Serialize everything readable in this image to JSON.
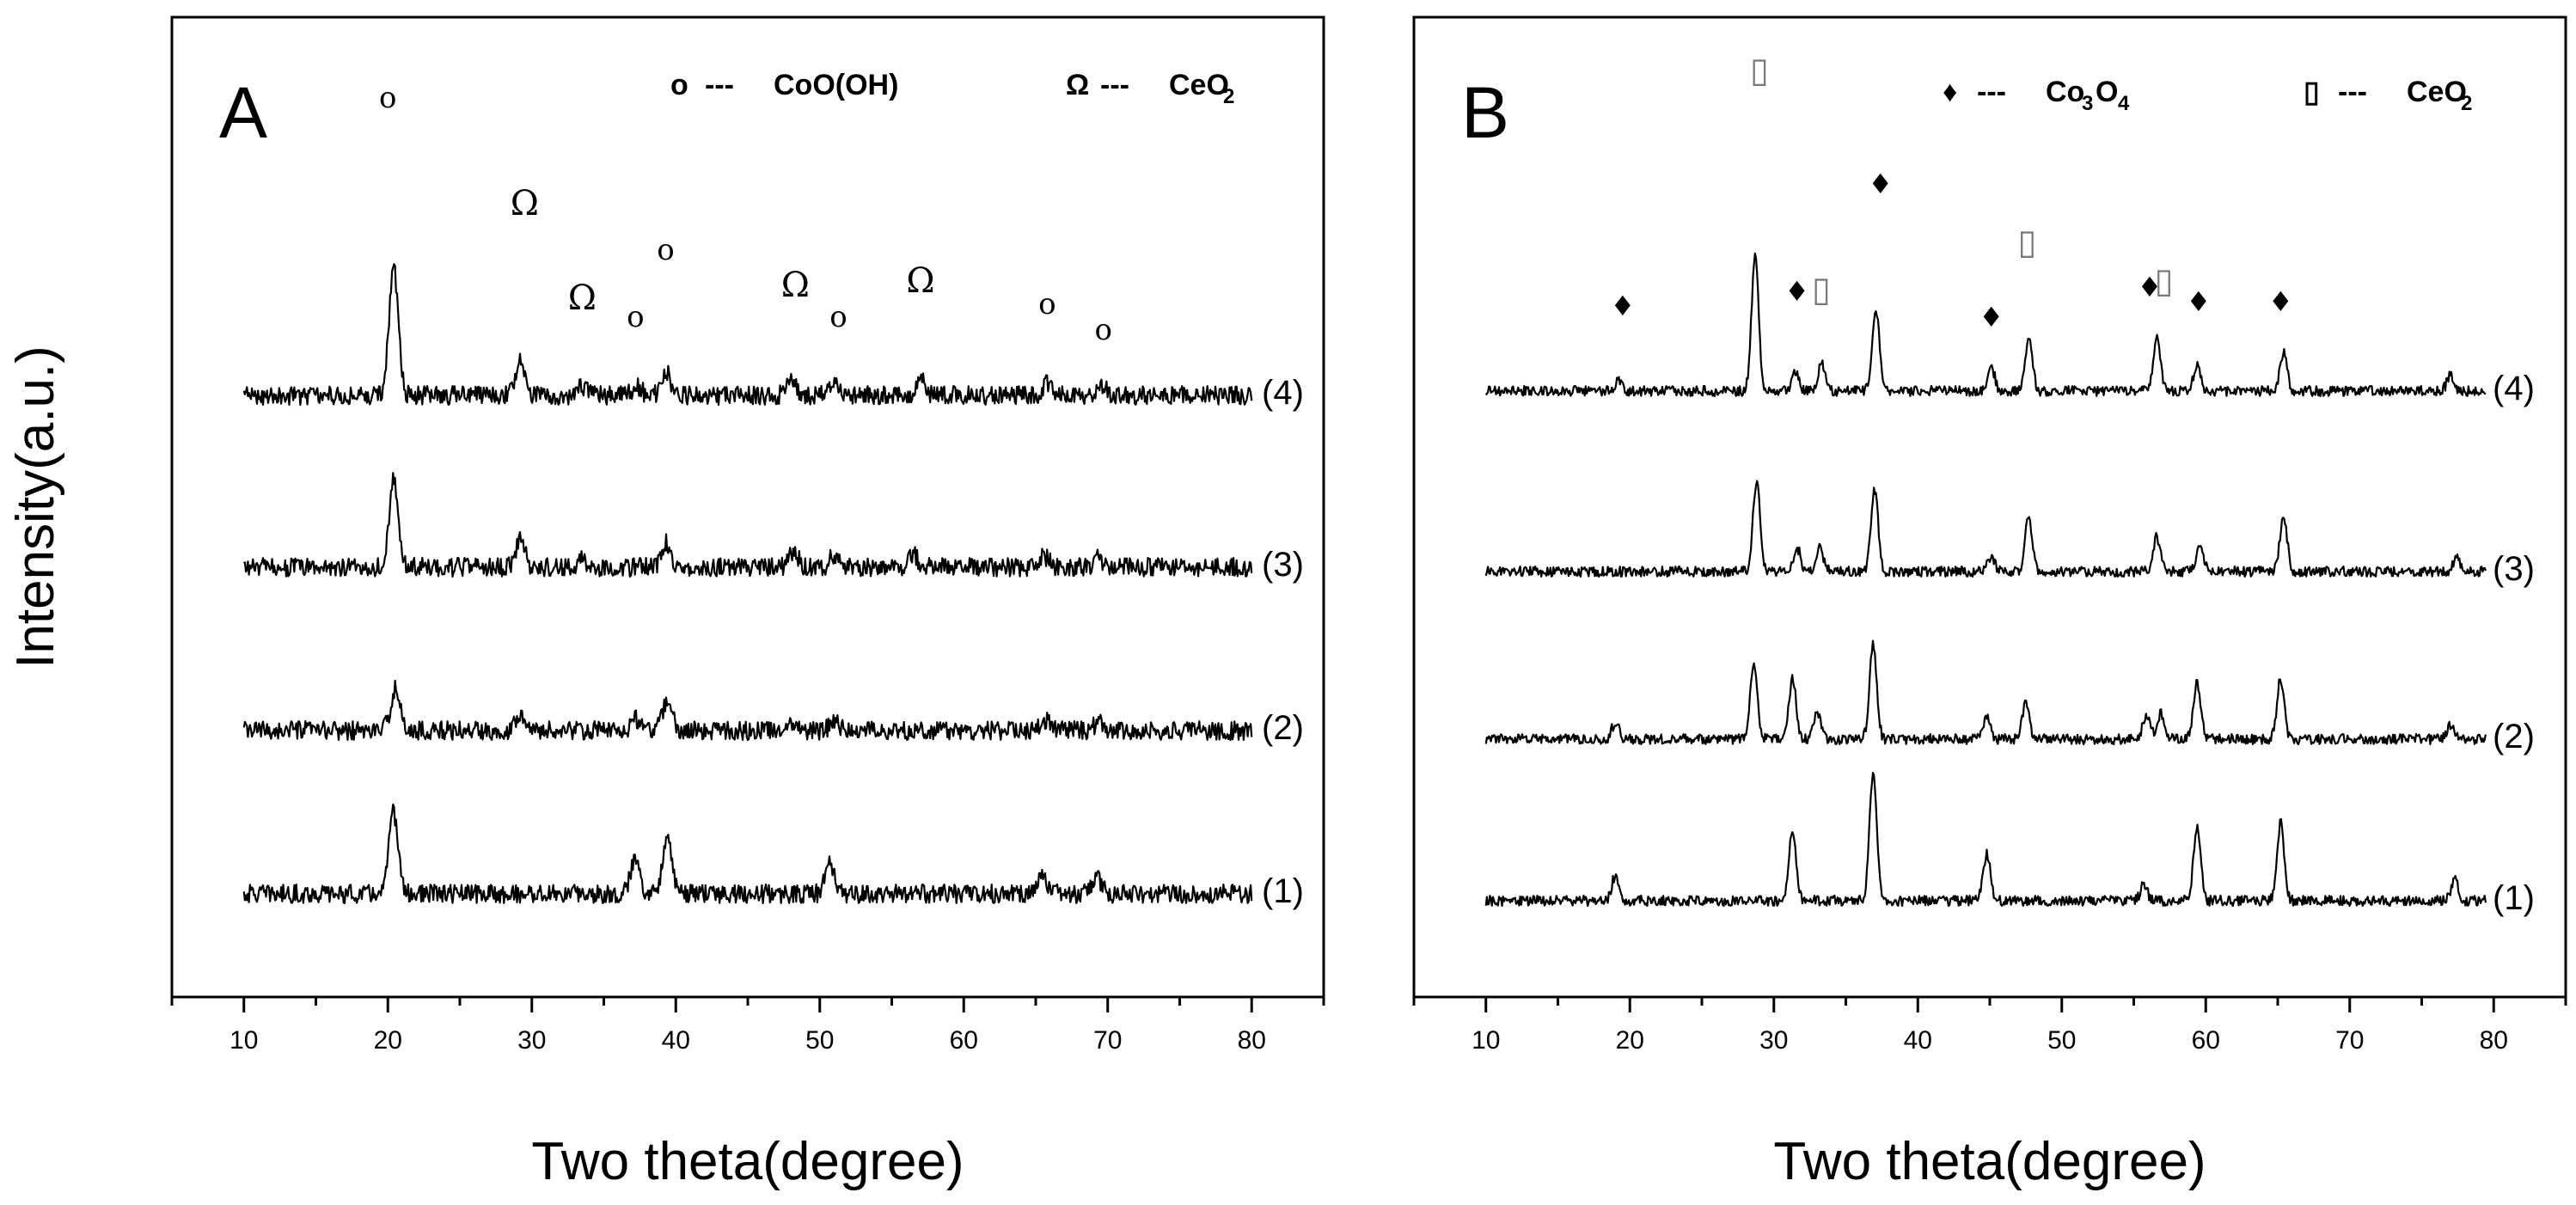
{
  "chart_data": [
    {
      "type": "line",
      "panel_label": "A",
      "xlabel": "Two theta(degree)",
      "ylabel": "Intensity(a.u.)",
      "xlim": [
        5,
        85
      ],
      "xticks": [
        10,
        20,
        30,
        40,
        50,
        60,
        70,
        80
      ],
      "grid": false,
      "legend_position": "top-right",
      "legend": [
        {
          "symbol": "o",
          "dash": "---",
          "name": "CoO(OH)",
          "sub": ""
        },
        {
          "symbol": "Ω",
          "dash": "---",
          "name": "CeO",
          "sub": "2"
        }
      ],
      "series": [
        {
          "name": "(1)",
          "peaks": [
            [
              20.4,
              95
            ],
            [
              37.2,
              42
            ],
            [
              39.4,
              70
            ],
            [
              50.7,
              35
            ],
            [
              65.5,
              22
            ],
            [
              69.3,
              18
            ]
          ]
        },
        {
          "name": "(2)",
          "peaks": [
            [
              20.5,
              48
            ],
            [
              29.2,
              22
            ],
            [
              37.2,
              14
            ],
            [
              39.4,
              35
            ],
            [
              48.0,
              12
            ],
            [
              51.0,
              10
            ],
            [
              65.6,
              12
            ],
            [
              69.4,
              10
            ]
          ]
        },
        {
          "name": "(3)",
          "peaks": [
            [
              20.4,
              100
            ],
            [
              29.2,
              30
            ],
            [
              33.5,
              8
            ],
            [
              39.3,
              28
            ],
            [
              48.2,
              17
            ],
            [
              51.0,
              13
            ],
            [
              56.5,
              14
            ],
            [
              65.6,
              13
            ],
            [
              69.3,
              10
            ]
          ]
        },
        {
          "name": "(4)",
          "peaks": [
            [
              20.4,
              150
            ],
            [
              29.2,
              38
            ],
            [
              33.5,
              10
            ],
            [
              37.3,
              10
            ],
            [
              39.3,
              28
            ],
            [
              48.0,
              22
            ],
            [
              51.0,
              13
            ],
            [
              57.0,
              20
            ],
            [
              65.8,
              15
            ],
            [
              69.6,
              12
            ]
          ]
        }
      ],
      "markers": [
        {
          "symbol": "o",
          "x": 20.0
        },
        {
          "symbol": "Ω",
          "x": 29.5
        },
        {
          "symbol": "Ω",
          "x": 33.5
        },
        {
          "symbol": "o",
          "x": 37.2
        },
        {
          "symbol": "o",
          "x": 39.3
        },
        {
          "symbol": "Ω",
          "x": 48.3
        },
        {
          "symbol": "o",
          "x": 51.3
        },
        {
          "symbol": "Ω",
          "x": 57.0
        },
        {
          "symbol": "o",
          "x": 65.8
        },
        {
          "symbol": "o",
          "x": 69.7
        }
      ]
    },
    {
      "type": "line",
      "panel_label": "B",
      "xlabel": "Two theta(degree)",
      "ylabel": "",
      "xlim": [
        5,
        85
      ],
      "xticks": [
        10,
        20,
        30,
        40,
        50,
        60,
        70,
        80
      ],
      "grid": false,
      "legend_position": "top-right",
      "legend": [
        {
          "symbol": "♦",
          "dash": "---",
          "name": "Co",
          "sub": "3",
          "name2": "O",
          "sub2": "4"
        },
        {
          "symbol": "▯",
          "dash": "---",
          "name": "CeO",
          "sub": "2",
          "name2": "",
          "sub2": ""
        }
      ],
      "series": [
        {
          "name": "(1)",
          "peaks": [
            [
              19.0,
              30
            ],
            [
              31.3,
              80
            ],
            [
              36.9,
              150
            ],
            [
              44.8,
              55
            ],
            [
              55.7,
              18
            ],
            [
              59.4,
              85
            ],
            [
              65.2,
              90
            ],
            [
              77.3,
              25
            ]
          ]
        },
        {
          "name": "(2)",
          "peaks": [
            [
              19.0,
              20
            ],
            [
              28.6,
              90
            ],
            [
              31.3,
              70
            ],
            [
              33.0,
              30
            ],
            [
              36.9,
              110
            ],
            [
              44.8,
              25
            ],
            [
              47.5,
              40
            ],
            [
              55.9,
              30
            ],
            [
              56.9,
              30
            ],
            [
              59.4,
              65
            ],
            [
              65.2,
              70
            ],
            [
              77.0,
              15
            ]
          ]
        },
        {
          "name": "(3)",
          "peaks": [
            [
              28.8,
              105
            ],
            [
              31.6,
              28
            ],
            [
              33.2,
              28
            ],
            [
              37.0,
              95
            ],
            [
              45.1,
              18
            ],
            [
              47.7,
              62
            ],
            [
              56.6,
              40
            ],
            [
              59.6,
              28
            ],
            [
              65.4,
              65
            ],
            [
              77.4,
              15
            ]
          ]
        },
        {
          "name": "(4)",
          "peaks": [
            [
              19.2,
              12
            ],
            [
              28.7,
              155
            ],
            [
              31.5,
              20
            ],
            [
              33.3,
              32
            ],
            [
              37.1,
              95
            ],
            [
              45.1,
              27
            ],
            [
              47.7,
              62
            ],
            [
              56.6,
              62
            ],
            [
              59.4,
              30
            ],
            [
              65.4,
              45
            ],
            [
              77.0,
              18
            ]
          ]
        }
      ],
      "markers": [
        {
          "symbol": "▯",
          "x": 29.0
        },
        {
          "symbol": "♦",
          "x": 19.5
        },
        {
          "symbol": "♦",
          "x": 31.6
        },
        {
          "symbol": "▯",
          "x": 33.3
        },
        {
          "symbol": "♦",
          "x": 37.4
        },
        {
          "symbol": "▯",
          "x": 47.6
        },
        {
          "symbol": "♦",
          "x": 45.1
        },
        {
          "symbol": "♦",
          "x": 56.1
        },
        {
          "symbol": "▯",
          "x": 57.1
        },
        {
          "symbol": "♦",
          "x": 59.5
        },
        {
          "symbol": "♦",
          "x": 65.2
        }
      ]
    }
  ]
}
